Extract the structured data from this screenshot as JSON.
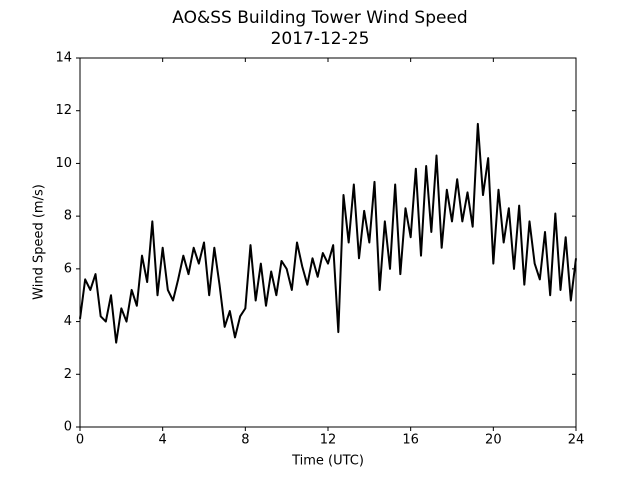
{
  "chart_data": {
    "type": "line",
    "title": "AO&SS Building Tower Wind Speed",
    "subtitle": "2017-12-25",
    "x_label": "Time (UTC)",
    "y_label": "Wind Speed (m/s)",
    "color": "#000000",
    "xlim": [
      0,
      24
    ],
    "ylim": [
      0,
      14
    ],
    "xticks": [
      0,
      4,
      8,
      12,
      16,
      20,
      24
    ],
    "yticks": [
      0,
      2,
      4,
      6,
      8,
      10,
      12,
      14
    ],
    "x": [
      0,
      0.25,
      0.5,
      0.75,
      1,
      1.25,
      1.5,
      1.75,
      2,
      2.25,
      2.5,
      2.75,
      3,
      3.25,
      3.5,
      3.75,
      4,
      4.25,
      4.5,
      4.75,
      5,
      5.25,
      5.5,
      5.75,
      6,
      6.25,
      6.5,
      6.75,
      7,
      7.25,
      7.5,
      7.75,
      8,
      8.25,
      8.5,
      8.75,
      9,
      9.25,
      9.5,
      9.75,
      10,
      10.25,
      10.5,
      10.75,
      11,
      11.25,
      11.5,
      11.75,
      12,
      12.25,
      12.5,
      12.75,
      13,
      13.25,
      13.5,
      13.75,
      14,
      14.25,
      14.5,
      14.75,
      15,
      15.25,
      15.5,
      15.75,
      16,
      16.25,
      16.5,
      16.75,
      17,
      17.25,
      17.5,
      17.75,
      18,
      18.25,
      18.5,
      18.75,
      19,
      19.25,
      19.5,
      19.75,
      20,
      20.25,
      20.5,
      20.75,
      21,
      21.25,
      21.5,
      21.75,
      22,
      22.25,
      22.5,
      22.75,
      23,
      23.25,
      23.5,
      23.75,
      24
    ],
    "values": [
      4.1,
      5.6,
      5.2,
      5.8,
      4.2,
      4.0,
      5.0,
      3.2,
      4.5,
      4.0,
      5.2,
      4.6,
      6.5,
      5.5,
      7.8,
      5.0,
      6.8,
      5.2,
      4.8,
      5.6,
      6.5,
      5.8,
      6.8,
      6.2,
      7.0,
      5.0,
      6.8,
      5.4,
      3.8,
      4.4,
      3.4,
      4.2,
      4.5,
      6.9,
      4.8,
      6.2,
      4.6,
      5.9,
      5.0,
      6.3,
      6.0,
      5.2,
      7.0,
      6.1,
      5.4,
      6.4,
      5.7,
      6.6,
      6.2,
      6.9,
      3.6,
      8.8,
      7.0,
      9.2,
      6.4,
      8.2,
      7.0,
      9.3,
      5.2,
      7.8,
      6.0,
      9.2,
      5.8,
      8.3,
      7.2,
      9.8,
      6.5,
      9.9,
      7.4,
      10.3,
      6.8,
      9.0,
      7.8,
      9.4,
      7.8,
      8.9,
      7.6,
      11.5,
      8.8,
      10.2,
      6.2,
      9.0,
      7.0,
      8.3,
      6.0,
      8.4,
      5.4,
      7.8,
      6.2,
      5.6,
      7.4,
      5.0,
      8.1,
      5.2,
      7.2,
      4.8,
      6.4
    ]
  }
}
